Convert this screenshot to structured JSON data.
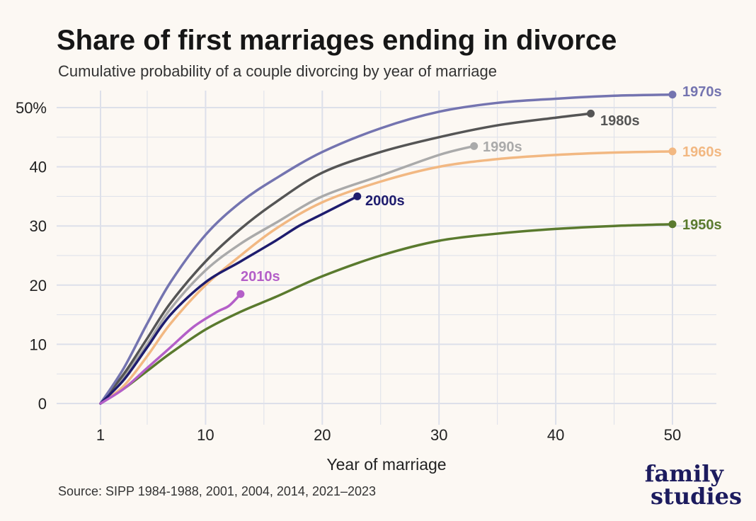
{
  "chart_data": {
    "type": "line",
    "title": "Share of first marriages ending in divorce",
    "subtitle": "Cumulative probability of a couple divorcing by year of marriage",
    "xlabel": "Year of marriage",
    "ylabel": "",
    "source": "Source: SIPP 1984-1988, 2001, 2004, 2014, 2021–2023",
    "xlim": [
      1,
      50
    ],
    "ylim": [
      0,
      50
    ],
    "x_ticks": [
      1,
      10,
      20,
      30,
      40,
      50
    ],
    "x_tick_labels": [
      "1",
      "10",
      "20",
      "30",
      "40",
      "50"
    ],
    "y_ticks": [
      0,
      10,
      20,
      30,
      40,
      50
    ],
    "y_tick_labels": [
      "0",
      "10",
      "20",
      "30",
      "40",
      "50%"
    ],
    "grid": true,
    "legend": "direct labels at line ends",
    "series": [
      {
        "name": "1950s",
        "color": "#5a7a2e",
        "x": [
          1,
          3,
          5,
          7,
          10,
          13,
          16,
          20,
          25,
          30,
          35,
          40,
          45,
          50
        ],
        "y": [
          0,
          2.5,
          5.5,
          8.5,
          12.5,
          15.5,
          18.0,
          21.5,
          25.0,
          27.5,
          28.7,
          29.5,
          30.0,
          30.3
        ]
      },
      {
        "name": "1960s",
        "color": "#f2b882",
        "x": [
          1,
          3,
          5,
          7,
          10,
          13,
          16,
          20,
          25,
          30,
          35,
          40,
          45,
          50
        ],
        "y": [
          0,
          3.0,
          8.0,
          13.5,
          20.0,
          25.0,
          29.5,
          34.0,
          37.5,
          40.0,
          41.3,
          42.0,
          42.4,
          42.6
        ]
      },
      {
        "name": "1970s",
        "color": "#7474b0",
        "x": [
          1,
          3,
          5,
          7,
          10,
          13,
          16,
          20,
          25,
          30,
          35,
          40,
          45,
          50
        ],
        "y": [
          0,
          6.0,
          13.5,
          20.5,
          28.5,
          34.0,
          38.0,
          42.5,
          46.5,
          49.3,
          50.8,
          51.5,
          52.0,
          52.2
        ]
      },
      {
        "name": "1980s",
        "color": "#555555",
        "x": [
          1,
          3,
          5,
          7,
          10,
          13,
          16,
          20,
          25,
          30,
          35,
          40,
          43
        ],
        "y": [
          0,
          5.0,
          11.0,
          17.0,
          24.0,
          29.5,
          34.0,
          39.0,
          42.5,
          45.0,
          47.0,
          48.3,
          49.0
        ]
      },
      {
        "name": "1990s",
        "color": "#aaaaaa",
        "x": [
          1,
          3,
          5,
          7,
          10,
          13,
          16,
          20,
          25,
          30,
          33
        ],
        "y": [
          0,
          4.5,
          10.0,
          16.0,
          22.5,
          27.0,
          30.5,
          35.0,
          38.5,
          42.0,
          43.5
        ]
      },
      {
        "name": "2000s",
        "color": "#1e1c6e",
        "x": [
          1,
          3,
          5,
          7,
          10,
          13,
          16,
          18,
          20,
          23
        ],
        "y": [
          0,
          4.0,
          9.5,
          15.0,
          20.5,
          24.0,
          27.5,
          30.0,
          32.0,
          35.0
        ]
      },
      {
        "name": "2010s",
        "color": "#b45fc8",
        "x": [
          1,
          3,
          5,
          7,
          9,
          11,
          12,
          13
        ],
        "y": [
          0,
          2.5,
          6.0,
          9.5,
          13.0,
          15.5,
          16.5,
          18.5
        ]
      }
    ]
  },
  "logo": {
    "line1": "family",
    "line2": "studies",
    "color": "#1c1b5e"
  }
}
